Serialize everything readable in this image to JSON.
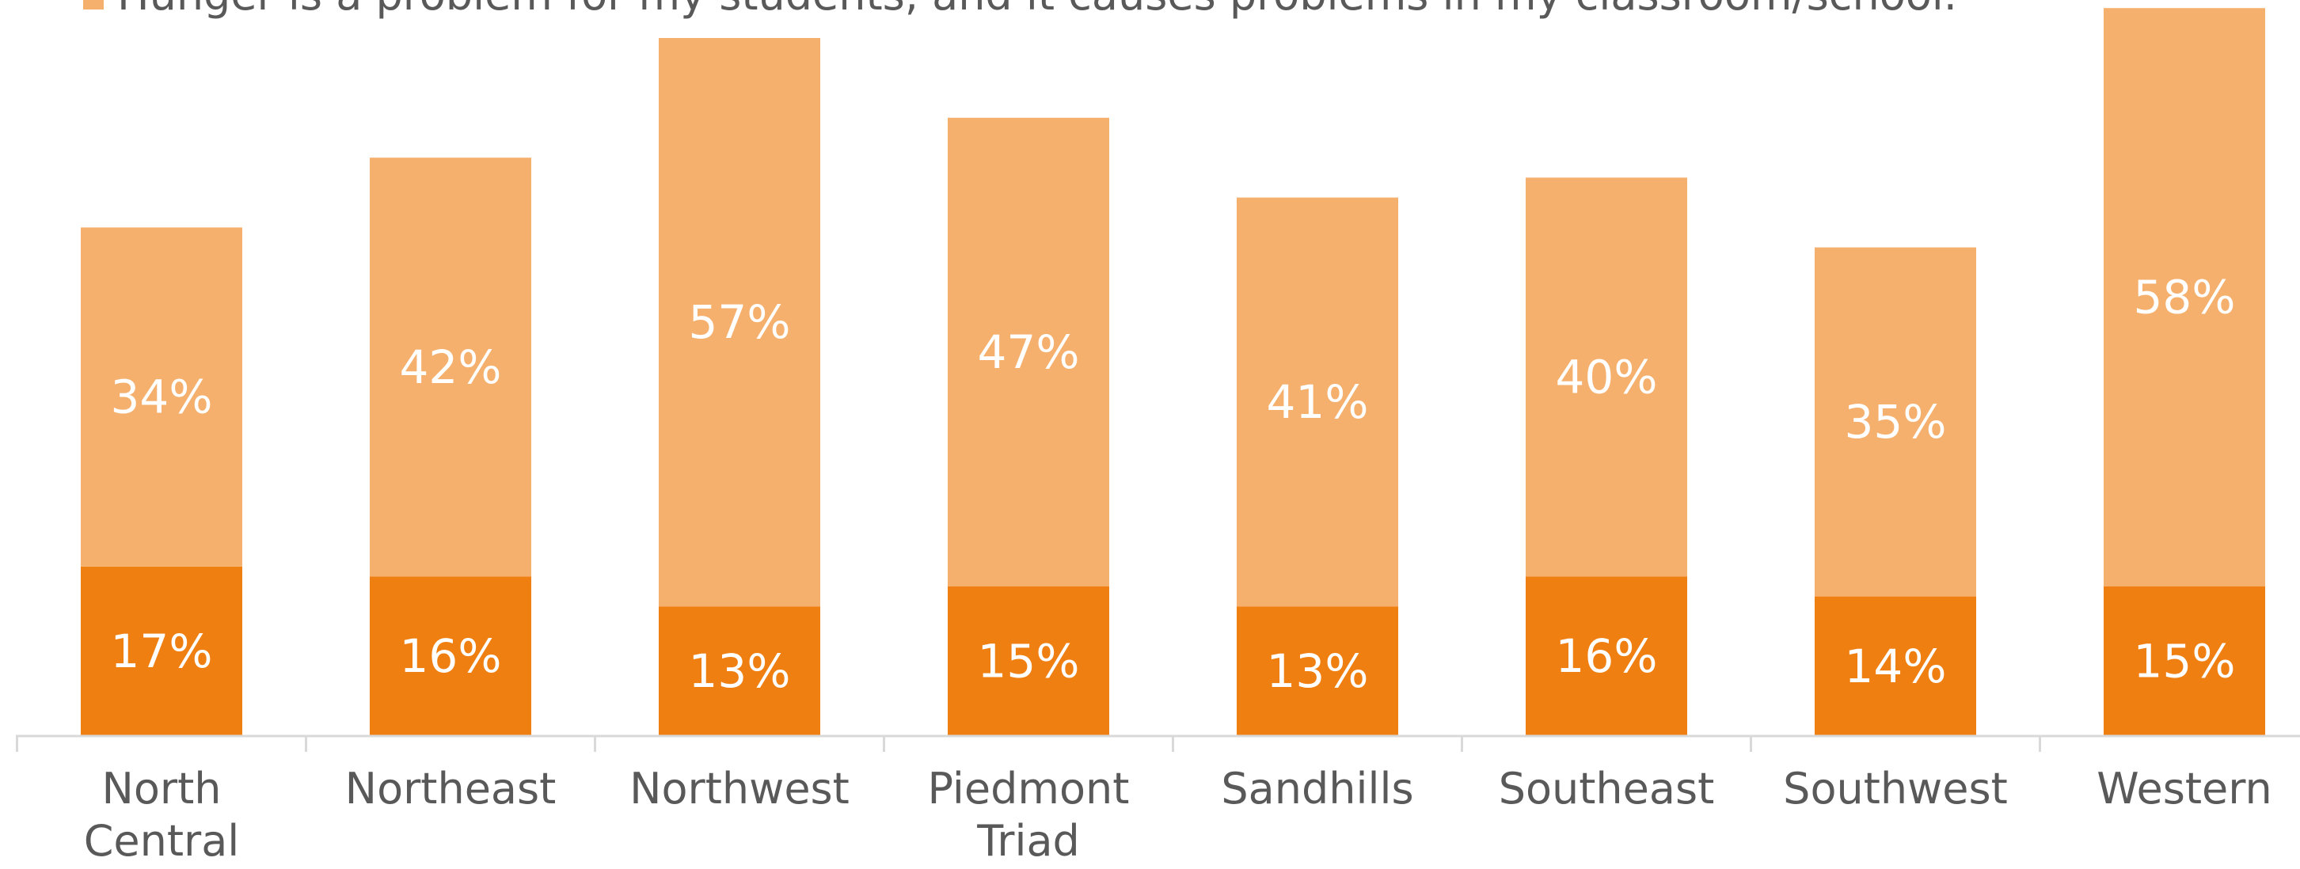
{
  "chart_data": {
    "type": "bar",
    "stacked": true,
    "categories": [
      "North Central",
      "Northeast",
      "Northwest",
      "Piedmont Triad",
      "Sandhills",
      "Southeast",
      "Southwest",
      "Western"
    ],
    "category_lines": [
      [
        "North",
        "Central"
      ],
      [
        "Northeast"
      ],
      [
        "Northwest"
      ],
      [
        "Piedmont",
        "Triad"
      ],
      [
        "Sandhills"
      ],
      [
        "Southeast"
      ],
      [
        "Southwest"
      ],
      [
        "Western"
      ]
    ],
    "series": [
      {
        "values": [
          17,
          16,
          13,
          15,
          13,
          16,
          14,
          15
        ],
        "labels": [
          "17%",
          "16%",
          "13%",
          "15%",
          "13%",
          "16%",
          "14%",
          "15%"
        ],
        "color": "#F07F12"
      },
      {
        "name": "Hunger is a problem for my students, and it causes problems in my classroom/school.",
        "values": [
          34,
          42,
          57,
          47,
          41,
          40,
          35,
          58
        ],
        "labels": [
          "34%",
          "42%",
          "57%",
          "47%",
          "41%",
          "40%",
          "35%",
          "58%"
        ],
        "color": "#F6B06E"
      }
    ],
    "legend": {
      "position": "top",
      "entries": [
        "Hunger is a problem for my students, and it causes problems in my classroom/school."
      ]
    },
    "ylim": [
      0,
      73
    ],
    "grid": false,
    "label_color": "#ffffff",
    "axis_color": "#d9d9d9",
    "tick_label_color": "#595959"
  }
}
